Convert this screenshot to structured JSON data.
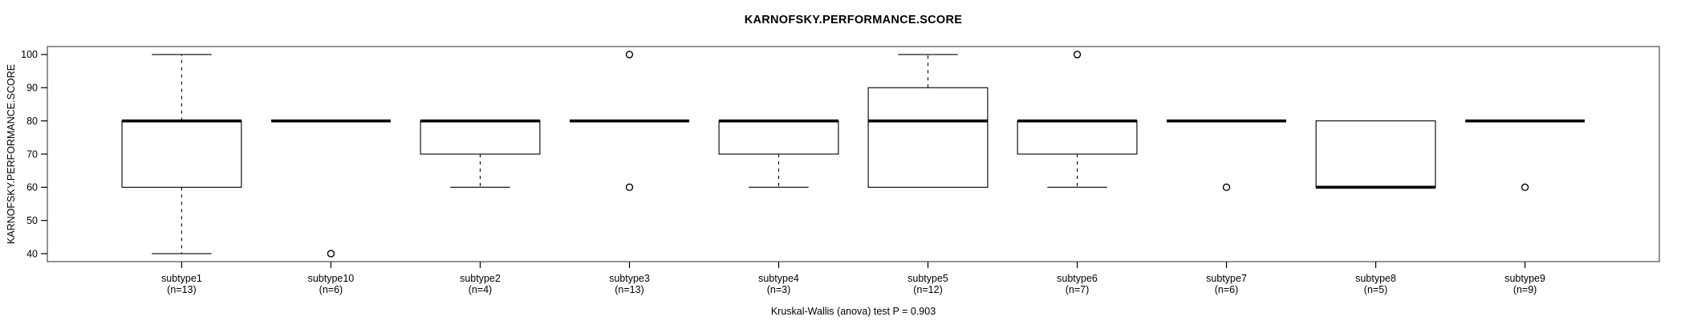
{
  "chart_data": {
    "type": "boxplot",
    "title": "KARNOFSKY.PERFORMANCE.SCORE",
    "ylabel": "KARNOFSKY.PERFORMANCE.SCORE",
    "xlabel": "",
    "caption": "Kruskal-Wallis (anova) test P = 0.903",
    "ylim": [
      37.6,
      102.4
    ],
    "yticks": [
      40,
      50,
      60,
      70,
      80,
      90,
      100
    ],
    "grid": false,
    "legend": "none",
    "colors": {
      "box_stroke": "#000000",
      "median": "#000000",
      "frame": "#666666",
      "axis": "#000000",
      "background": "#ffffff"
    },
    "groups": [
      {
        "label": "subtype1",
        "n": 13,
        "n_label": "(n=13)",
        "low": 40,
        "q1": 60,
        "med": 80,
        "q3": 80,
        "high": 100,
        "outliers": []
      },
      {
        "label": "subtype10",
        "n": 6,
        "n_label": "(n=6)",
        "low": 80,
        "q1": 80,
        "med": 80,
        "q3": 80,
        "high": 80,
        "outliers": [
          40
        ]
      },
      {
        "label": "subtype2",
        "n": 4,
        "n_label": "(n=4)",
        "low": 60,
        "q1": 70,
        "med": 80,
        "q3": 80,
        "high": 80,
        "outliers": []
      },
      {
        "label": "subtype3",
        "n": 13,
        "n_label": "(n=13)",
        "low": 80,
        "q1": 80,
        "med": 80,
        "q3": 80,
        "high": 80,
        "outliers": [
          100,
          60
        ]
      },
      {
        "label": "subtype4",
        "n": 3,
        "n_label": "(n=3)",
        "low": 60,
        "q1": 70,
        "med": 80,
        "q3": 80,
        "high": 80,
        "outliers": []
      },
      {
        "label": "subtype5",
        "n": 12,
        "n_label": "(n=12)",
        "low": 60,
        "q1": 60,
        "med": 80,
        "q3": 90,
        "high": 100,
        "outliers": []
      },
      {
        "label": "subtype6",
        "n": 7,
        "n_label": "(n=7)",
        "low": 60,
        "q1": 70,
        "med": 80,
        "q3": 80,
        "high": 80,
        "outliers": [
          100
        ]
      },
      {
        "label": "subtype7",
        "n": 6,
        "n_label": "(n=6)",
        "low": 80,
        "q1": 80,
        "med": 80,
        "q3": 80,
        "high": 80,
        "outliers": [
          60
        ]
      },
      {
        "label": "subtype8",
        "n": 5,
        "n_label": "(n=5)",
        "low": 60,
        "q1": 60,
        "med": 60,
        "q3": 80,
        "high": 80,
        "outliers": []
      },
      {
        "label": "subtype9",
        "n": 9,
        "n_label": "(n=9)",
        "low": 80,
        "q1": 80,
        "med": 80,
        "q3": 80,
        "high": 80,
        "outliers": [
          60
        ]
      }
    ]
  }
}
